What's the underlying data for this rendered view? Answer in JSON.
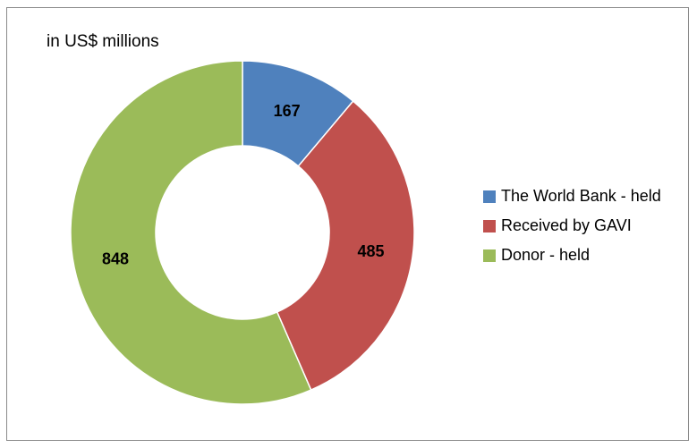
{
  "chart_data": {
    "type": "pie",
    "subtype": "donut",
    "unit_label": "in US$ millions",
    "slices": [
      {
        "label": "The World Bank - held",
        "value": 167,
        "value_label": "167",
        "color": "#4f81bd"
      },
      {
        "label": "Received by GAVI",
        "value": 485,
        "value_label": "485",
        "color": "#c0504d"
      },
      {
        "label": "Donor - held",
        "value": 848,
        "value_label": "848",
        "color": "#9bbb59"
      }
    ],
    "legend_position": "right"
  }
}
